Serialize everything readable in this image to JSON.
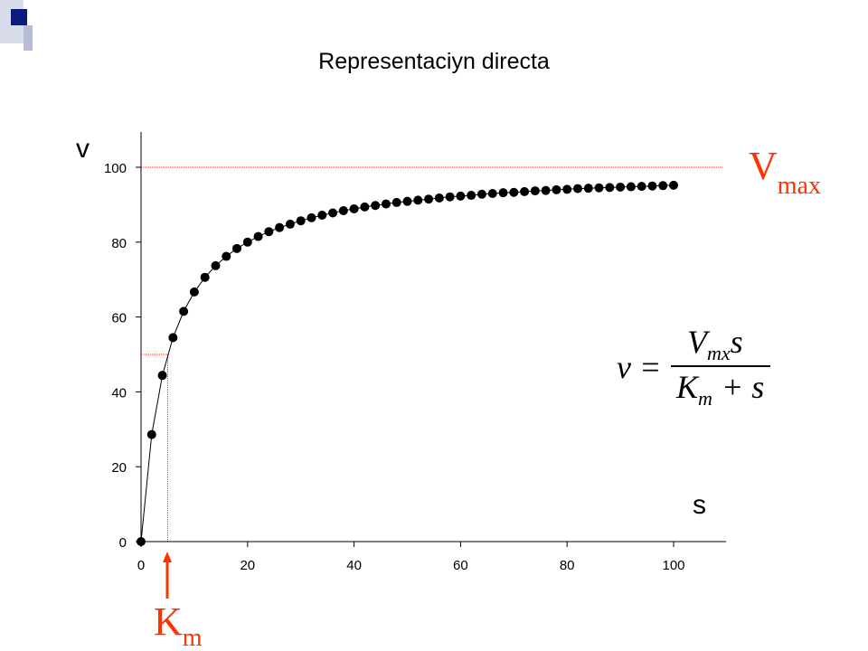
{
  "chart_data": {
    "type": "scatter",
    "title": "Representaciyn directa",
    "ylabel": "v",
    "xlabel": "s",
    "xlim": [
      0,
      110
    ],
    "ylim": [
      0,
      110
    ],
    "xticks": [
      "0",
      "20",
      "40",
      "60",
      "80",
      "100"
    ],
    "yticks": [
      "0",
      "20",
      "40",
      "60",
      "80",
      "100"
    ],
    "series": [
      {
        "x": [
          0,
          2,
          4,
          6,
          8,
          10,
          12,
          14,
          16,
          18,
          20,
          22,
          24,
          26,
          28,
          30,
          32,
          34,
          36,
          38,
          40,
          42,
          44,
          46,
          48,
          50,
          52,
          54,
          56,
          58,
          60,
          62,
          64,
          66,
          68,
          70,
          72,
          74,
          76,
          78,
          80,
          82,
          84,
          86,
          88,
          90,
          92,
          94,
          96,
          98,
          100
        ],
        "y": [
          0,
          28.6,
          44.4,
          54.5,
          61.5,
          66.7,
          70.6,
          73.7,
          76.2,
          78.3,
          80.0,
          81.5,
          82.8,
          83.9,
          84.8,
          85.7,
          86.5,
          87.2,
          87.8,
          88.4,
          88.9,
          89.4,
          89.8,
          90.2,
          90.6,
          90.9,
          91.2,
          91.5,
          91.8,
          92.1,
          92.3,
          92.5,
          92.8,
          93.0,
          93.2,
          93.3,
          93.5,
          93.7,
          93.8,
          94.0,
          94.1,
          94.3,
          94.4,
          94.5,
          94.6,
          94.7,
          94.8,
          94.9,
          95.0,
          95.1,
          95.2
        ]
      }
    ],
    "vmax_line": 100,
    "km_value": 5,
    "half_vmax": 50,
    "annotations": {
      "vmax_main": "V",
      "vmax_sub": "max",
      "km_main": "K",
      "km_sub": "m",
      "equation_lhs": "v =",
      "eq_num_main": "V",
      "eq_num_sub": "mx",
      "eq_num_tail": "s",
      "eq_den_main": "K",
      "eq_den_sub": "m",
      "eq_den_tail": "+ s"
    },
    "colors": {
      "points": "#000000",
      "guides": "#ff3300",
      "annotation": "#ff3300"
    }
  }
}
